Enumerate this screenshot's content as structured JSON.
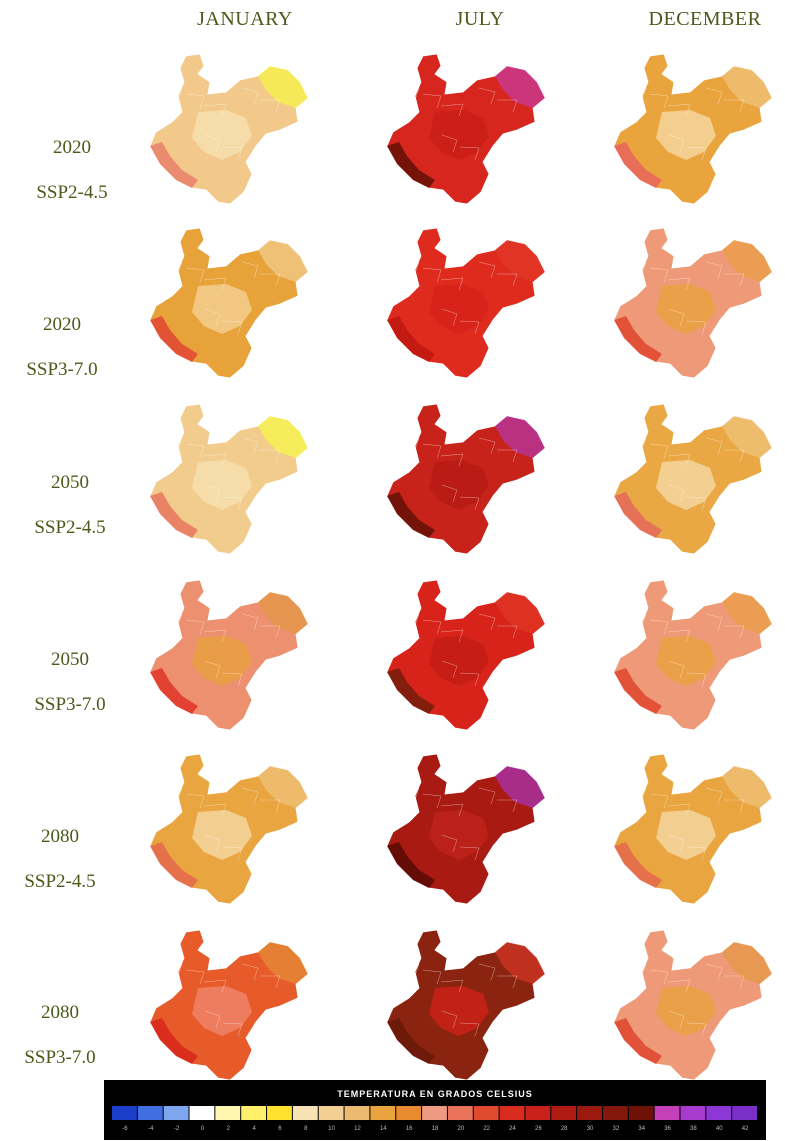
{
  "columns": [
    "JANUARY",
    "JULY",
    "DECEMBER"
  ],
  "rows": [
    {
      "year": "2020",
      "scenario": "SSP2-4.5"
    },
    {
      "year": "2020",
      "scenario": "SSP3-7.0"
    },
    {
      "year": "2050",
      "scenario": "SSP2-4.5"
    },
    {
      "year": "2050",
      "scenario": "SSP3-7.0"
    },
    {
      "year": "2080",
      "scenario": "SSP2-4.5"
    },
    {
      "year": "2080",
      "scenario": "SSP3-7.0"
    }
  ],
  "maps": [
    {
      "base": "#f2c98a",
      "inner": "#f7e2b2",
      "edge": "#e9836a",
      "accent": "#f6ff3a"
    },
    {
      "base": "#d7261d",
      "inner": "#c81d16",
      "edge": "#6b1208",
      "accent": "#c43fb8"
    },
    {
      "base": "#e9a43e",
      "inner": "#f6dcab",
      "edge": "#e8685a",
      "accent": "#f2c98a"
    },
    {
      "base": "#e8a23a",
      "inner": "#f4d39a",
      "edge": "#e04a32",
      "accent": "#f3d6a0"
    },
    {
      "base": "#de2b1e",
      "inner": "#d42218",
      "edge": "#c01810",
      "accent": "#e33a28"
    },
    {
      "base": "#ee9a78",
      "inner": "#e8a23a",
      "edge": "#e04a32",
      "accent": "#e9a03a"
    },
    {
      "base": "#f2cc8c",
      "inner": "#f7e2b2",
      "edge": "#e97a62",
      "accent": "#f6ff3a"
    },
    {
      "base": "#c8231b",
      "inner": "#b51b14",
      "edge": "#6a1208",
      "accent": "#b23ac8"
    },
    {
      "base": "#e9a843",
      "inner": "#f6dcab",
      "edge": "#e46a5a",
      "accent": "#f2c98a"
    },
    {
      "base": "#ec9070",
      "inner": "#e8a23a",
      "edge": "#e03a2a",
      "accent": "#e39a3a"
    },
    {
      "base": "#d8231a",
      "inner": "#c01c14",
      "edge": "#7a1e0c",
      "accent": "#e33a28"
    },
    {
      "base": "#ee9a78",
      "inner": "#e8a23a",
      "edge": "#e04a32",
      "accent": "#e9a03a"
    },
    {
      "base": "#e8a540",
      "inner": "#f6dcab",
      "edge": "#e46a4a",
      "accent": "#f2c98a"
    },
    {
      "base": "#a81a12",
      "inner": "#c2241c",
      "edge": "#5c0c06",
      "accent": "#a83ad8"
    },
    {
      "base": "#e8a540",
      "inner": "#f6dcab",
      "edge": "#e46a4a",
      "accent": "#f2c98a"
    },
    {
      "base": "#e75a2a",
      "inner": "#ef8a70",
      "edge": "#d8281a",
      "accent": "#e2983a"
    },
    {
      "base": "#8a2410",
      "inner": "#d42218",
      "edge": "#6a1a0a",
      "accent": "#e33a28"
    },
    {
      "base": "#ee9a78",
      "inner": "#e8a23a",
      "edge": "#e04a32",
      "accent": "#e2983a"
    }
  ],
  "legend": {
    "title": "TEMPERATURA EN GRADOS CELSIUS",
    "ticks": [
      "-6",
      "-4",
      "-2",
      "0",
      "2",
      "4",
      "6",
      "8",
      "10",
      "12",
      "14",
      "16",
      "18",
      "20",
      "22",
      "24",
      "26",
      "28",
      "30",
      "32",
      "34",
      "36",
      "38",
      "40",
      "42"
    ],
    "colors": [
      "#1c3fc9",
      "#3f6fe0",
      "#7ea6ee",
      "#ffffff",
      "#fff7b0",
      "#ffef6a",
      "#ffe12e",
      "#f6e2b4",
      "#f1cf92",
      "#ecbb70",
      "#e9a440",
      "#e78a30",
      "#ee9a80",
      "#e9735a",
      "#e04a2e",
      "#d82c1e",
      "#c8221a",
      "#b01c14",
      "#9a1a10",
      "#84170c",
      "#6e1208",
      "#c43fb8",
      "#a93ad0",
      "#8d38d6",
      "#7a30c8"
    ]
  }
}
